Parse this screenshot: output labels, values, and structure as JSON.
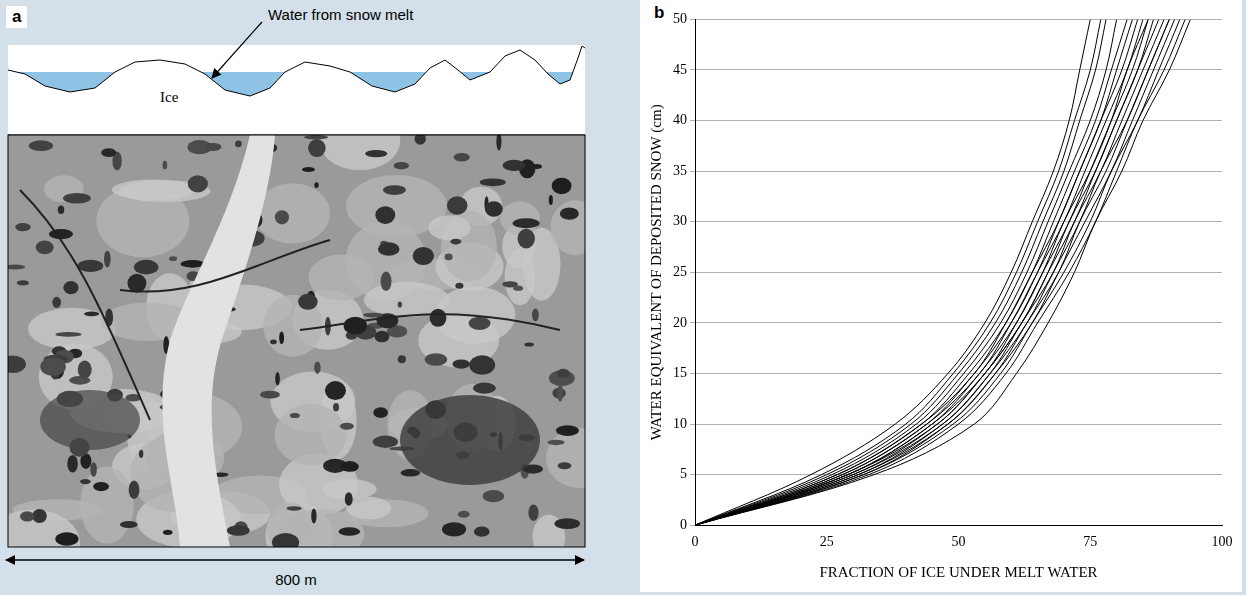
{
  "panel_a": {
    "letter": "a",
    "water_label": "Water from snow melt",
    "ice_label": "Ice",
    "scale_bar": "800 m"
  },
  "chart_data": {
    "letter": "b",
    "type": "line",
    "x_label": "FRACTION OF ICE UNDER MELT WATER",
    "y_label": "WATER EQUIVALENT OF DEPOSITED SNOW (cm)",
    "xlim": [
      0,
      100
    ],
    "xticks": [
      0,
      25,
      50,
      75,
      100
    ],
    "ylim": [
      0,
      50
    ],
    "yticks": [
      0,
      5,
      10,
      15,
      20,
      25,
      30,
      35,
      40,
      45,
      50
    ],
    "grid": true,
    "series": [
      {
        "color": "#000000",
        "x": [
          0,
          22,
          38,
          48,
          55,
          60,
          64,
          68,
          71,
          73,
          75
        ],
        "values": [
          0,
          5,
          10,
          15,
          20,
          25,
          30,
          35,
          40,
          45,
          50
        ]
      },
      {
        "color": "#000000",
        "x": [
          0,
          24,
          40,
          49,
          56,
          61,
          65,
          69,
          72,
          75,
          77
        ],
        "values": [
          0,
          5,
          10,
          15,
          20,
          25,
          30,
          35,
          40,
          45,
          50
        ]
      },
      {
        "color": "#000000",
        "x": [
          0,
          25,
          41,
          50,
          57,
          62,
          66,
          70,
          73,
          76,
          78
        ],
        "values": [
          0,
          5,
          10,
          15,
          20,
          25,
          30,
          35,
          40,
          45,
          50
        ]
      },
      {
        "color": "#000000",
        "x": [
          0,
          26,
          42,
          51,
          58,
          63,
          67,
          71,
          75,
          78,
          80
        ],
        "values": [
          0,
          5,
          10,
          15,
          20,
          25,
          30,
          35,
          40,
          45,
          50
        ]
      },
      {
        "color": "#000000",
        "x": [
          0,
          27,
          43,
          52,
          59,
          64,
          68,
          72,
          76,
          79,
          82
        ],
        "values": [
          0,
          5,
          10,
          15,
          20,
          25,
          30,
          35,
          40,
          45,
          50
        ]
      },
      {
        "color": "#000000",
        "x": [
          0,
          27,
          43,
          53,
          59,
          64,
          69,
          73,
          77,
          80,
          83
        ],
        "values": [
          0,
          5,
          10,
          15,
          20,
          25,
          30,
          35,
          40,
          45,
          50
        ]
      },
      {
        "color": "#000000",
        "x": [
          0,
          28,
          44,
          53,
          60,
          65,
          69,
          73,
          77,
          81,
          84
        ],
        "values": [
          0,
          5,
          10,
          15,
          20,
          25,
          30,
          35,
          40,
          45,
          50
        ]
      },
      {
        "color": "#000000",
        "x": [
          0,
          28,
          44,
          54,
          60,
          65,
          70,
          74,
          78,
          82,
          85
        ],
        "values": [
          0,
          5,
          10,
          15,
          20,
          25,
          30,
          35,
          40,
          45,
          50
        ]
      },
      {
        "color": "#000000",
        "x": [
          0,
          29,
          45,
          54,
          61,
          66,
          70,
          75,
          79,
          82,
          86
        ],
        "values": [
          0,
          5,
          10,
          15,
          20,
          25,
          30,
          35,
          40,
          45,
          50
        ]
      },
      {
        "color": "#000000",
        "x": [
          0,
          29,
          45,
          55,
          61,
          66,
          71,
          75,
          79,
          83,
          86
        ],
        "values": [
          0,
          5,
          10,
          15,
          20,
          25,
          30,
          35,
          40,
          45,
          50
        ]
      },
      {
        "color": "#000000",
        "x": [
          0,
          29,
          46,
          55,
          62,
          67,
          71,
          76,
          80,
          84,
          87
        ],
        "values": [
          0,
          5,
          10,
          15,
          20,
          25,
          30,
          35,
          40,
          45,
          50
        ]
      },
      {
        "color": "#000000",
        "x": [
          0,
          30,
          46,
          55,
          62,
          67,
          72,
          76,
          80,
          84,
          88
        ],
        "values": [
          0,
          5,
          10,
          15,
          20,
          25,
          30,
          35,
          40,
          45,
          50
        ]
      },
      {
        "color": "#000000",
        "x": [
          0,
          30,
          47,
          56,
          62,
          68,
          72,
          77,
          81,
          85,
          89
        ],
        "values": [
          0,
          5,
          10,
          15,
          20,
          25,
          30,
          35,
          40,
          45,
          50
        ]
      },
      {
        "color": "#000000",
        "x": [
          0,
          31,
          47,
          56,
          63,
          68,
          73,
          77,
          82,
          86,
          90
        ],
        "values": [
          0,
          5,
          10,
          15,
          20,
          25,
          30,
          35,
          40,
          45,
          50
        ]
      },
      {
        "color": "#000000",
        "x": [
          0,
          31,
          48,
          57,
          63,
          69,
          73,
          78,
          82,
          86,
          90
        ],
        "values": [
          0,
          5,
          10,
          15,
          20,
          25,
          30,
          35,
          40,
          45,
          50
        ]
      },
      {
        "color": "#000000",
        "x": [
          0,
          32,
          48,
          57,
          64,
          69,
          74,
          79,
          83,
          87,
          91
        ],
        "values": [
          0,
          5,
          10,
          15,
          20,
          25,
          30,
          35,
          40,
          45,
          50
        ]
      },
      {
        "color": "#000000",
        "x": [
          0,
          32,
          49,
          58,
          64,
          70,
          75,
          79,
          84,
          88,
          92
        ],
        "values": [
          0,
          5,
          10,
          15,
          20,
          25,
          30,
          35,
          40,
          45,
          50
        ]
      },
      {
        "color": "#000000",
        "x": [
          0,
          33,
          50,
          59,
          65,
          71,
          76,
          80,
          84,
          89,
          93
        ],
        "values": [
          0,
          5,
          10,
          15,
          20,
          25,
          30,
          35,
          40,
          45,
          50
        ]
      },
      {
        "color": "#000000",
        "x": [
          0,
          34,
          53,
          61,
          67,
          72,
          76,
          81,
          85,
          90,
          94
        ],
        "values": [
          0,
          5,
          10,
          15,
          20,
          25,
          30,
          35,
          40,
          45,
          50
        ]
      }
    ]
  }
}
